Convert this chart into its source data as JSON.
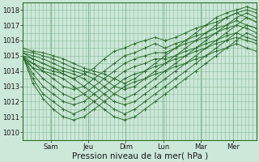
{
  "background_color": "#cce8d8",
  "grid_color": "#88bb99",
  "line_color": "#2d6e2d",
  "xlabel": "Pression niveau de la mer( hPa )",
  "xlabel_fontsize": 7.5,
  "ylim": [
    1009.5,
    1018.5
  ],
  "yticks": [
    1010,
    1011,
    1012,
    1013,
    1014,
    1015,
    1016,
    1017,
    1018
  ],
  "xtick_labels": [
    "Sam",
    "Jeu",
    "Dim",
    "Lun",
    "Mar",
    "Mer"
  ],
  "xtick_positions": [
    0.12,
    0.28,
    0.44,
    0.6,
    0.76,
    0.9
  ],
  "series": [
    [
      1015.2,
      1014.8,
      1014.5,
      1014.2,
      1013.8,
      1013.5,
      1013.8,
      1014.2,
      1014.8,
      1015.3,
      1015.5,
      1015.8,
      1016.0,
      1016.2,
      1016.0,
      1016.2,
      1016.5,
      1016.8,
      1017.0,
      1017.2,
      1017.5,
      1017.8,
      1017.5,
      1017.2
    ],
    [
      1015.0,
      1014.5,
      1014.0,
      1013.5,
      1013.0,
      1012.8,
      1013.0,
      1013.5,
      1014.0,
      1014.5,
      1015.0,
      1015.2,
      1015.5,
      1015.8,
      1015.5,
      1015.8,
      1016.0,
      1016.3,
      1016.5,
      1016.8,
      1017.0,
      1017.3,
      1017.0,
      1016.8
    ],
    [
      1015.0,
      1014.2,
      1013.5,
      1013.0,
      1012.5,
      1012.2,
      1012.5,
      1013.0,
      1013.5,
      1014.0,
      1014.5,
      1014.8,
      1015.0,
      1015.2,
      1015.2,
      1015.5,
      1015.8,
      1016.0,
      1016.2,
      1016.5,
      1016.8,
      1017.0,
      1016.8,
      1016.5
    ],
    [
      1015.0,
      1013.8,
      1013.0,
      1012.5,
      1012.0,
      1011.8,
      1012.0,
      1012.5,
      1013.0,
      1013.5,
      1014.0,
      1014.3,
      1014.5,
      1014.8,
      1014.8,
      1015.0,
      1015.3,
      1015.5,
      1015.8,
      1016.0,
      1016.3,
      1016.5,
      1016.2,
      1016.0
    ],
    [
      1015.0,
      1013.5,
      1012.5,
      1012.0,
      1011.5,
      1011.2,
      1011.5,
      1012.0,
      1012.5,
      1013.0,
      1013.5,
      1013.8,
      1014.0,
      1014.3,
      1014.5,
      1014.8,
      1015.0,
      1015.3,
      1015.5,
      1015.8,
      1016.0,
      1016.2,
      1016.0,
      1015.8
    ],
    [
      1015.0,
      1013.2,
      1012.2,
      1011.5,
      1011.0,
      1010.8,
      1011.0,
      1011.5,
      1012.0,
      1012.5,
      1013.0,
      1013.3,
      1013.5,
      1013.8,
      1014.0,
      1014.3,
      1014.5,
      1014.8,
      1015.0,
      1015.3,
      1015.5,
      1015.8,
      1015.5,
      1015.3
    ],
    [
      1014.8,
      1014.2,
      1014.0,
      1013.8,
      1013.5,
      1013.0,
      1012.5,
      1012.0,
      1011.5,
      1011.0,
      1010.8,
      1011.0,
      1011.5,
      1012.0,
      1012.5,
      1013.0,
      1013.5,
      1014.0,
      1014.5,
      1015.0,
      1015.5,
      1016.0,
      1016.5,
      1016.2
    ],
    [
      1014.8,
      1014.5,
      1014.2,
      1014.0,
      1013.8,
      1013.5,
      1013.0,
      1012.5,
      1012.0,
      1011.5,
      1011.2,
      1011.5,
      1012.0,
      1012.5,
      1013.0,
      1013.5,
      1014.0,
      1014.5,
      1015.0,
      1015.5,
      1016.0,
      1016.5,
      1017.0,
      1016.8
    ],
    [
      1015.0,
      1014.8,
      1014.5,
      1014.2,
      1014.0,
      1013.8,
      1013.5,
      1013.0,
      1012.5,
      1012.0,
      1011.8,
      1012.0,
      1012.5,
      1013.0,
      1013.5,
      1014.0,
      1014.5,
      1015.0,
      1015.5,
      1016.0,
      1016.5,
      1017.0,
      1017.5,
      1017.2
    ],
    [
      1015.2,
      1015.0,
      1014.8,
      1014.5,
      1014.2,
      1014.0,
      1013.8,
      1013.5,
      1013.0,
      1012.5,
      1012.2,
      1012.5,
      1013.0,
      1013.5,
      1014.0,
      1014.5,
      1015.0,
      1015.5,
      1016.0,
      1016.5,
      1017.0,
      1017.5,
      1017.8,
      1017.5
    ],
    [
      1015.3,
      1015.2,
      1015.0,
      1014.8,
      1014.5,
      1014.2,
      1014.0,
      1013.8,
      1013.5,
      1013.0,
      1012.8,
      1013.0,
      1013.5,
      1014.0,
      1014.5,
      1015.0,
      1015.5,
      1016.0,
      1016.5,
      1017.0,
      1017.5,
      1017.8,
      1018.0,
      1017.8
    ],
    [
      1015.5,
      1015.3,
      1015.2,
      1015.0,
      1014.8,
      1014.5,
      1014.2,
      1014.0,
      1013.8,
      1013.5,
      1013.2,
      1013.5,
      1014.0,
      1014.5,
      1015.0,
      1015.5,
      1016.0,
      1016.5,
      1017.0,
      1017.5,
      1017.8,
      1018.0,
      1018.2,
      1018.0
    ]
  ],
  "vline_positions": [
    0.12,
    0.28,
    0.44,
    0.6,
    0.76,
    0.9
  ],
  "n_xgrid": 60,
  "figsize": [
    3.2,
    2.0
  ],
  "dpi": 100
}
